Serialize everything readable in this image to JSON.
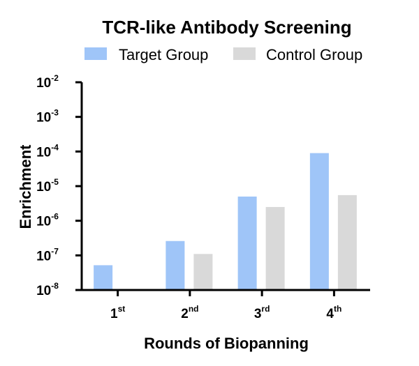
{
  "chart_data": {
    "type": "bar",
    "title": "TCR-like Antibody Screening",
    "xlabel": "Rounds of Biopanning",
    "ylabel": "Enrichment",
    "y_scale": "log",
    "ylim": [
      1e-08,
      0.01
    ],
    "categories": [
      {
        "base": "1",
        "sup": "st"
      },
      {
        "base": "2",
        "sup": "nd"
      },
      {
        "base": "3",
        "sup": "rd"
      },
      {
        "base": "4",
        "sup": "th"
      }
    ],
    "y_ticks": [
      {
        "value": 0.01,
        "base": "10",
        "sup": "-2"
      },
      {
        "value": 0.001,
        "base": "10",
        "sup": "-3"
      },
      {
        "value": 0.0001,
        "base": "10",
        "sup": "-4"
      },
      {
        "value": 1e-05,
        "base": "10",
        "sup": "-5"
      },
      {
        "value": 1e-06,
        "base": "10",
        "sup": "-6"
      },
      {
        "value": 1e-07,
        "base": "10",
        "sup": "-7"
      },
      {
        "value": 1e-08,
        "base": "10",
        "sup": "-8"
      }
    ],
    "series": [
      {
        "name": "Target Group",
        "color": "#9fc5f8",
        "values": [
          5.2e-08,
          2.6e-07,
          5e-06,
          9e-05
        ]
      },
      {
        "name": "Control Group",
        "color": "#d9d9d9",
        "values": [
          null,
          1.1e-07,
          2.5e-06,
          5.5e-06
        ]
      }
    ],
    "legend_position": "top",
    "grid": false
  }
}
